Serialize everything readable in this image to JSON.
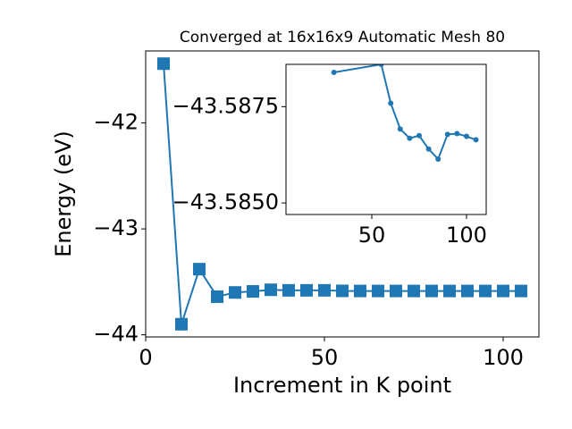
{
  "chart_data": [
    {
      "type": "line",
      "title": "Converged at 16x16x9 Automatic Mesh 80",
      "xlabel": "Increment in K point",
      "ylabel": "Energy (eV)",
      "x": [
        5,
        10,
        15,
        20,
        25,
        30,
        35,
        40,
        45,
        50,
        55,
        60,
        65,
        70,
        75,
        80,
        85,
        90,
        95,
        100,
        105
      ],
      "series": [
        {
          "color": "#1f77b4",
          "marker": "square",
          "values": [
            -41.44,
            -43.9,
            -43.38,
            -43.64,
            -43.6,
            -43.59,
            -43.575,
            -43.58,
            -43.58,
            -43.58,
            -43.585,
            -43.586,
            -43.586,
            -43.586,
            -43.586,
            -43.586,
            -43.586,
            -43.586,
            -43.586,
            -43.586,
            -43.586
          ]
        }
      ],
      "xlim": [
        0,
        110
      ],
      "ylim": [
        -44.02,
        -41.32
      ],
      "xticks": [
        0,
        50,
        100
      ],
      "yticks": [
        {
          "value": -44,
          "label": "−44"
        },
        {
          "value": -43,
          "label": "−43"
        },
        {
          "value": -42,
          "label": "−42"
        }
      ]
    },
    {
      "type": "line",
      "x": [
        30,
        55,
        60,
        65,
        70,
        75,
        80,
        85,
        90,
        95,
        100,
        105
      ],
      "series": [
        {
          "color": "#1f77b4",
          "marker": "circle",
          "values": [
            -43.58839,
            -43.5886,
            -43.58759,
            -43.58692,
            -43.58668,
            -43.58675,
            -43.5864,
            -43.58614,
            -43.58678,
            -43.5868,
            -43.58673,
            -43.58664
          ]
        }
      ],
      "xlim": [
        4.7,
        110.4
      ],
      "ylim": [
        -43.5847,
        -43.5886
      ],
      "xticks": [
        50,
        100
      ],
      "yticks": [
        {
          "value": -43.5875,
          "label": "−43.5875"
        },
        {
          "value": -43.585,
          "label": "−43.5850"
        }
      ]
    }
  ]
}
